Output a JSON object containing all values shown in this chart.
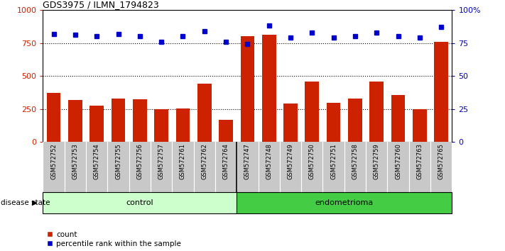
{
  "title": "GDS3975 / ILMN_1794823",
  "samples": [
    "GSM572752",
    "GSM572753",
    "GSM572754",
    "GSM572755",
    "GSM572756",
    "GSM572757",
    "GSM572761",
    "GSM572762",
    "GSM572764",
    "GSM572747",
    "GSM572748",
    "GSM572749",
    "GSM572750",
    "GSM572751",
    "GSM572758",
    "GSM572759",
    "GSM572760",
    "GSM572763",
    "GSM572765"
  ],
  "counts": [
    370,
    315,
    275,
    330,
    325,
    250,
    255,
    440,
    165,
    800,
    810,
    290,
    455,
    295,
    330,
    455,
    355,
    250,
    760
  ],
  "percentile": [
    82,
    81,
    80,
    82,
    80,
    76,
    80,
    84,
    76,
    74,
    88,
    79,
    83,
    79,
    80,
    83,
    80,
    79,
    87
  ],
  "control_count": 9,
  "endometrioma_count": 10,
  "ylim_left": [
    0,
    1000
  ],
  "ylim_right": [
    0,
    100
  ],
  "yticks_left": [
    0,
    250,
    500,
    750,
    1000
  ],
  "yticks_right": [
    0,
    25,
    50,
    75,
    100
  ],
  "ytick_right_labels": [
    "0",
    "25",
    "50",
    "75",
    "100%"
  ],
  "bar_color": "#cc2200",
  "dot_color": "#0000cc",
  "control_bg": "#ccffcc",
  "endometrioma_bg": "#44cc44",
  "label_bg": "#c8c8c8",
  "disease_state_label": "disease state",
  "control_label": "control",
  "endometrioma_label": "endometrioma",
  "legend_count": "count",
  "legend_percentile": "percentile rank within the sample"
}
